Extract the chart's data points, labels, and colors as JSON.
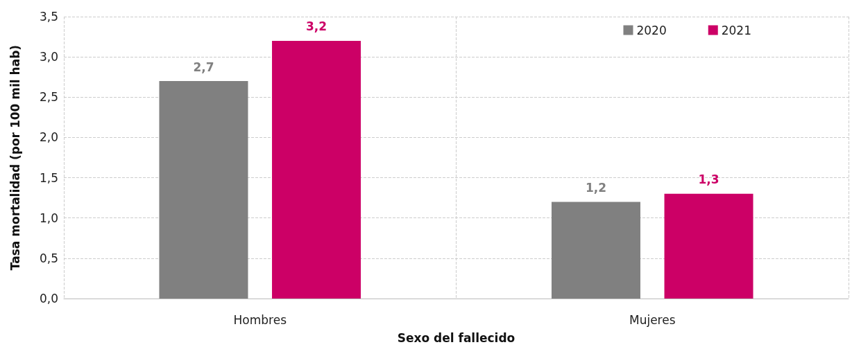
{
  "chart_data": {
    "type": "bar",
    "xlabel": "Sexo del fallecido",
    "ylabel": "Tasa mortalidad (por 100 mil hab)",
    "categories": [
      "Hombres",
      "Mujeres"
    ],
    "series": [
      {
        "name": "2020",
        "color": "#808080",
        "values": [
          2.7,
          1.2
        ],
        "value_labels": [
          "2,7",
          "1,2"
        ]
      },
      {
        "name": "2021",
        "color": "#cc0066",
        "values": [
          3.2,
          1.3
        ],
        "value_labels": [
          "3,2",
          "1,3"
        ]
      }
    ],
    "ylim": [
      0,
      3.5
    ],
    "yticks": [
      {
        "value": 0,
        "label": "0,0"
      },
      {
        "value": 0.5,
        "label": "0,5"
      },
      {
        "value": 1,
        "label": "1,0"
      },
      {
        "value": 1.5,
        "label": "1,5"
      },
      {
        "value": 2,
        "label": "2,0"
      },
      {
        "value": 2.5,
        "label": "2,5"
      },
      {
        "value": 3,
        "label": "3,0"
      },
      {
        "value": 3.5,
        "label": "3,5"
      }
    ],
    "grid": true,
    "legend": "top right"
  }
}
